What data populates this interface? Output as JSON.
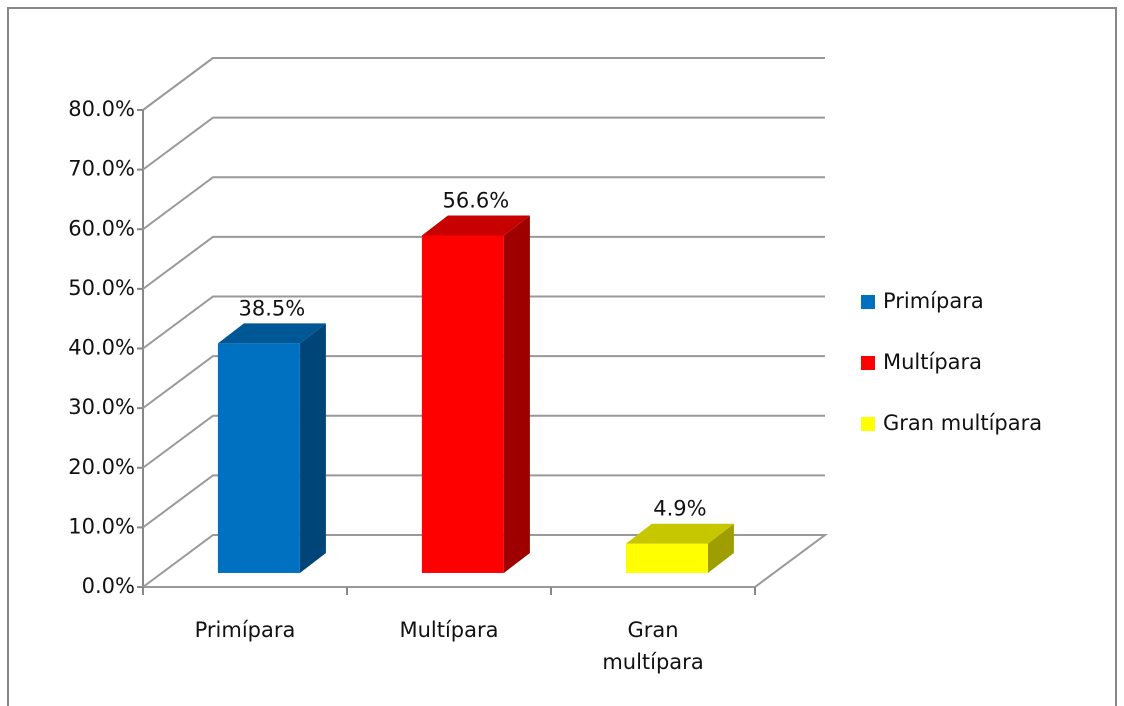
{
  "chart_data": {
    "type": "bar3d",
    "categories": [
      "Primípara",
      "Multípara",
      "Gran multípara"
    ],
    "values": [
      38.5,
      56.6,
      4.9
    ],
    "value_labels": [
      "38.5%",
      "56.6%",
      "4.9%"
    ],
    "colors": [
      "#0070c0",
      "#ff0000",
      "#ffff00"
    ],
    "ylim": [
      0,
      80
    ],
    "yticks": [
      {
        "value": 0,
        "label": "0.0%"
      },
      {
        "value": 10,
        "label": "10.0%"
      },
      {
        "value": 20,
        "label": "20.0%"
      },
      {
        "value": 30,
        "label": "30.0%"
      },
      {
        "value": 40,
        "label": "40.0%"
      },
      {
        "value": 50,
        "label": "50.0%"
      },
      {
        "value": 60,
        "label": "60.0%"
      },
      {
        "value": 70,
        "label": "70.0%"
      },
      {
        "value": 80,
        "label": "80.0%"
      }
    ],
    "grid": true,
    "legend": "right"
  }
}
